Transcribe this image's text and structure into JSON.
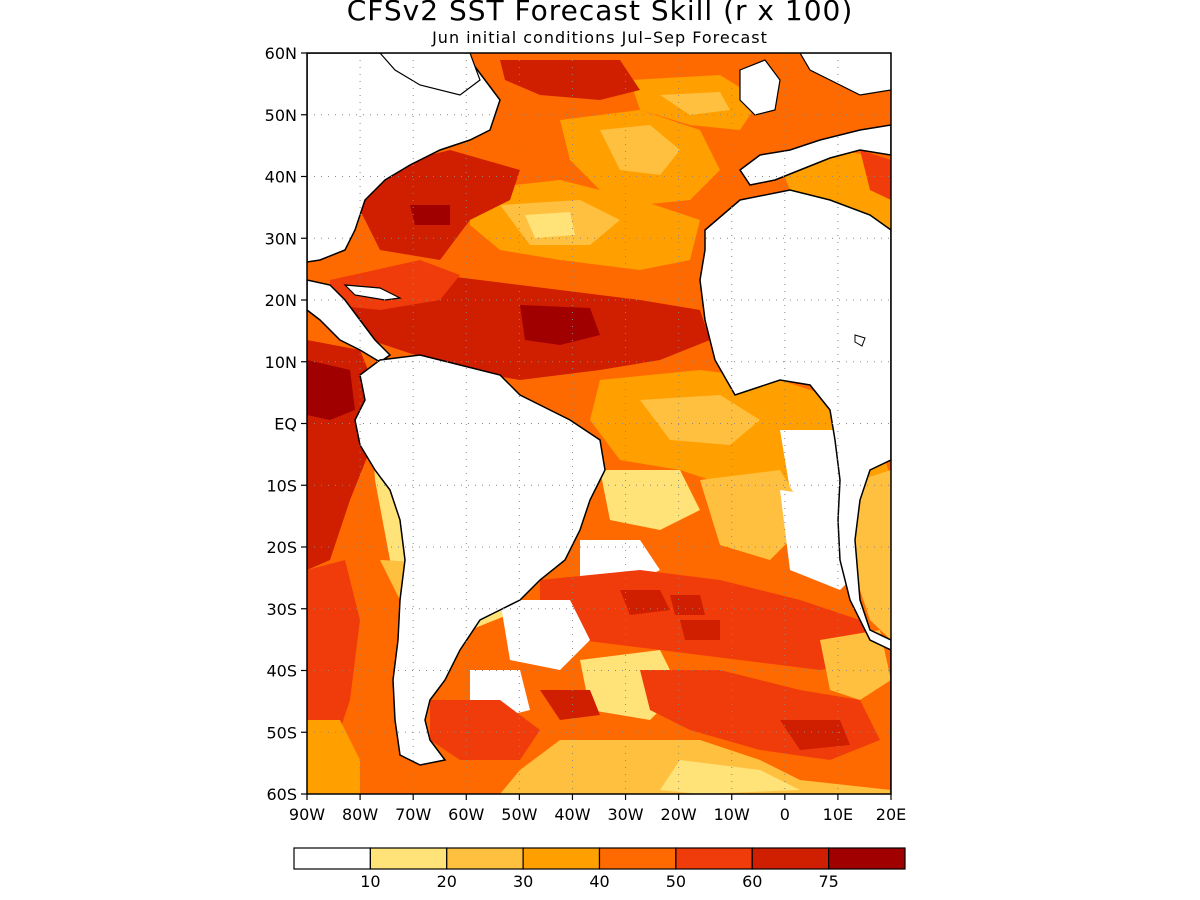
{
  "title": "CFSv2 SST Forecast Skill (r x 100)",
  "subtitle": "Jun initial conditions   Jul–Sep Forecast",
  "map": {
    "region": "Atlantic Ocean, 90W–20E, 60S–60N",
    "lon_range": [
      -90,
      20
    ],
    "lat_range": [
      -60,
      60
    ],
    "lat_ticks": [
      {
        "value": 60,
        "label": "60N"
      },
      {
        "value": 50,
        "label": "50N"
      },
      {
        "value": 40,
        "label": "40N"
      },
      {
        "value": 30,
        "label": "30N"
      },
      {
        "value": 20,
        "label": "20N"
      },
      {
        "value": 10,
        "label": "10N"
      },
      {
        "value": 0,
        "label": "EQ"
      },
      {
        "value": -10,
        "label": "10S"
      },
      {
        "value": -20,
        "label": "20S"
      },
      {
        "value": -30,
        "label": "30S"
      },
      {
        "value": -40,
        "label": "40S"
      },
      {
        "value": -50,
        "label": "50S"
      },
      {
        "value": -60,
        "label": "60S"
      }
    ],
    "lon_ticks": [
      {
        "value": -90,
        "label": "90W"
      },
      {
        "value": -80,
        "label": "80W"
      },
      {
        "value": -70,
        "label": "70W"
      },
      {
        "value": -60,
        "label": "60W"
      },
      {
        "value": -50,
        "label": "50W"
      },
      {
        "value": -40,
        "label": "40W"
      },
      {
        "value": -30,
        "label": "30W"
      },
      {
        "value": -20,
        "label": "20W"
      },
      {
        "value": -10,
        "label": "10W"
      },
      {
        "value": 0,
        "label": "0"
      },
      {
        "value": 10,
        "label": "10E"
      },
      {
        "value": 20,
        "label": "20E"
      }
    ],
    "grid": "dotted"
  },
  "colorbar": {
    "colors": [
      "#ffffff",
      "#ffe278",
      "#ffc040",
      "#ffa000",
      "#ff6a00",
      "#f03c0a",
      "#d01e00",
      "#a00000"
    ],
    "labels": [
      "10",
      "20",
      "30",
      "40",
      "50",
      "60",
      "75"
    ]
  }
}
